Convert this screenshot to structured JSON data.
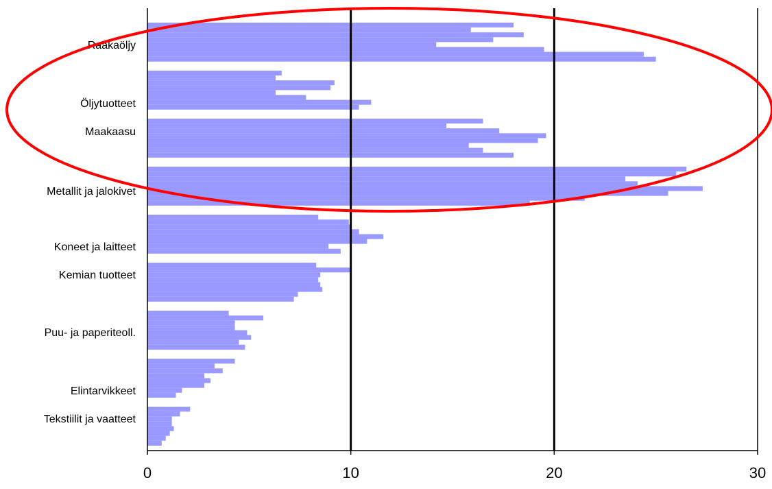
{
  "chart_data": {
    "type": "bar",
    "orientation": "horizontal",
    "categories": [
      "Raakaöljy",
      "Öljytuotteet",
      "Maakaasu",
      "Metallit ja jalokivet",
      "Koneet ja laitteet",
      "Kemian tuotteet",
      "Puu- ja paperiteoll.",
      "Elintarvikkeet",
      "Tekstiilit ja vaatteet"
    ],
    "values": [
      [
        18.0,
        15.9,
        18.5,
        17.0,
        14.2,
        19.5,
        24.4,
        25.0
      ],
      [
        6.6,
        6.3,
        9.2,
        9.0,
        6.3,
        7.8,
        11.0,
        10.4
      ],
      [
        16.5,
        14.7,
        17.3,
        19.6,
        19.2,
        15.8,
        16.5,
        18.0
      ],
      [
        26.5,
        26.0,
        23.5,
        24.1,
        27.3,
        25.6,
        21.5,
        18.8
      ],
      [
        8.4,
        9.9,
        10.0,
        10.4,
        11.6,
        10.8,
        8.9,
        9.5
      ],
      [
        8.3,
        10.0,
        8.5,
        8.4,
        8.5,
        8.6,
        7.4,
        7.2
      ],
      [
        4.0,
        5.7,
        4.3,
        4.3,
        4.9,
        5.1,
        4.5,
        4.8
      ],
      [
        4.3,
        3.3,
        3.7,
        2.8,
        3.1,
        2.8,
        1.7,
        1.4
      ],
      [
        2.1,
        1.6,
        1.2,
        1.2,
        1.3,
        1.1,
        0.9,
        0.7
      ]
    ],
    "xlim": [
      0,
      30
    ],
    "xticks": [
      "0",
      "10",
      "20",
      "30"
    ],
    "grid": "vertical lines at 10, 20, 30",
    "colors": {
      "bar": "#9999ff",
      "grid": "#000000",
      "annotation": "#ff0000"
    },
    "annotation": "red ellipse around Raakaöljy, Öljytuotteet, Maakaasu and Metallit ja jalokivet",
    "title": "",
    "xlabel": "",
    "ylabel": ""
  }
}
